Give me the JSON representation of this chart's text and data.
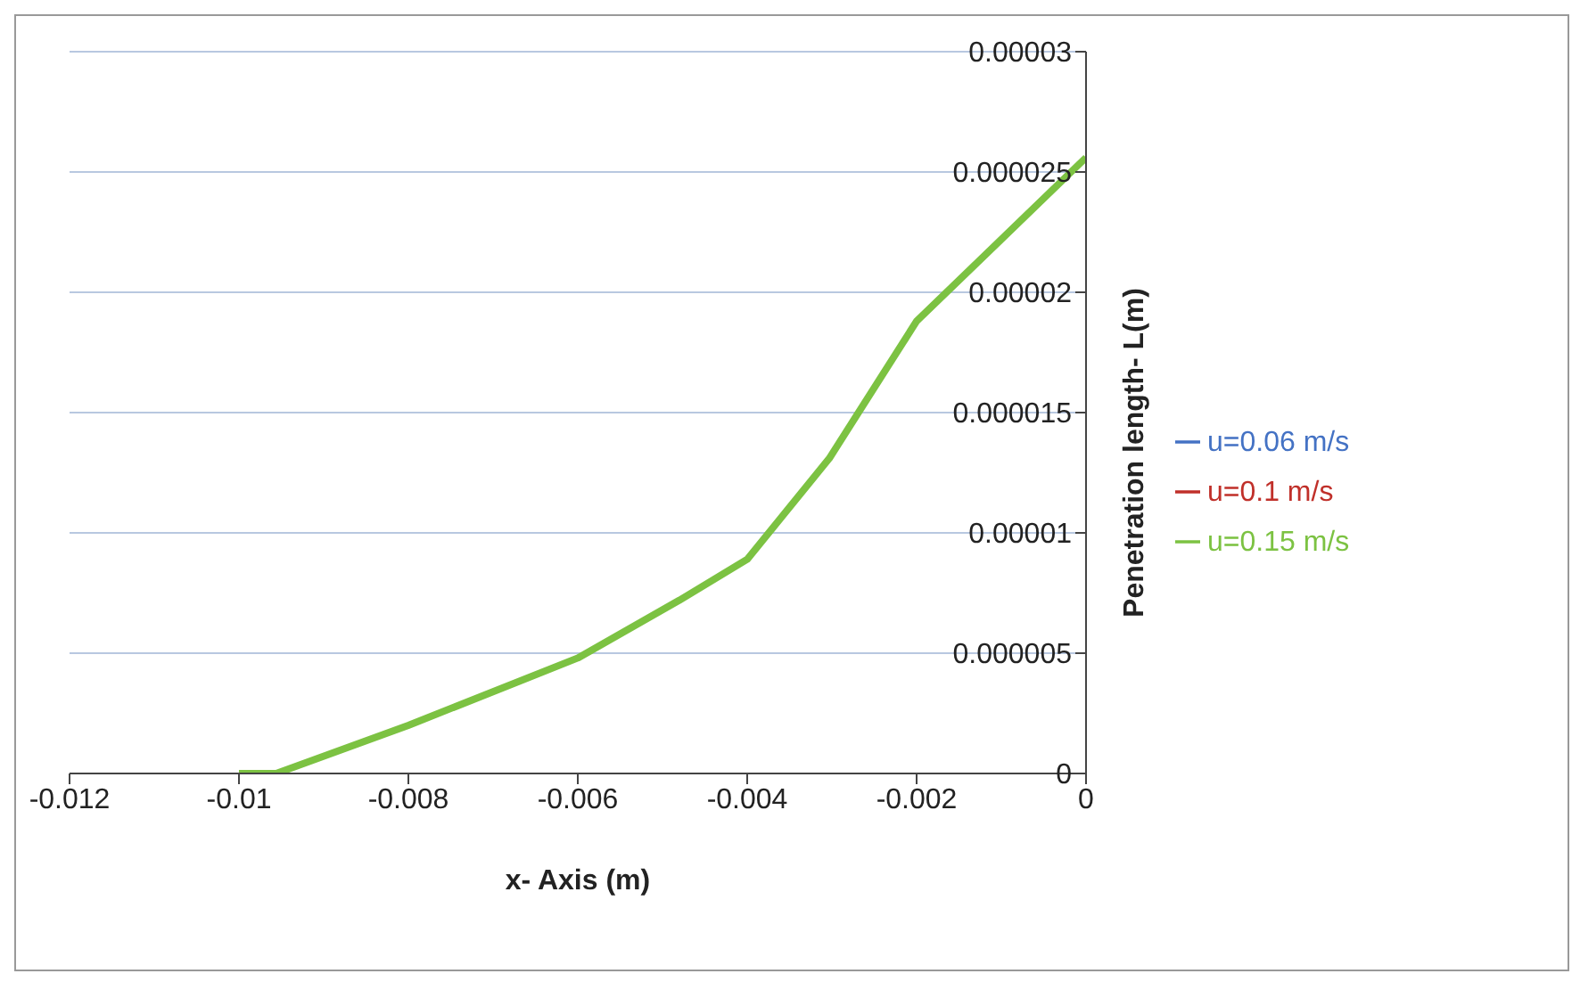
{
  "chart_data": {
    "type": "line",
    "xlabel": "x- Axis (m)",
    "ylabel": "Penetration length- L(m)",
    "x": [
      -0.01,
      -0.00956,
      -0.008,
      -0.006,
      -0.0048,
      -0.004,
      -0.00303,
      -0.002,
      -0.001,
      0
    ],
    "series": [
      {
        "name": "u=0.06 m/s",
        "color": "#4472c4",
        "values": [
          null,
          null,
          null,
          null,
          null,
          null,
          null,
          null,
          null,
          null
        ]
      },
      {
        "name": "u=0.1 m/s",
        "color": "#c0302a",
        "values": [
          null,
          null,
          null,
          null,
          null,
          null,
          null,
          null,
          null,
          null
        ]
      },
      {
        "name": "u=0.15 m/s",
        "color": "#7cc242",
        "values": [
          0,
          0,
          2e-06,
          4.8e-06,
          7.2e-06,
          8.9e-06,
          1.31e-05,
          1.88e-05,
          2.22e-05,
          2.56e-05
        ]
      }
    ],
    "xlim": [
      -0.012,
      0
    ],
    "xticks": [
      -0.012,
      -0.01,
      -0.008,
      -0.006,
      -0.004,
      -0.002,
      0
    ],
    "ylim": [
      0,
      3e-05
    ],
    "yticks": [
      0,
      {
        "value": 5e-06,
        "label": "0.000005"
      },
      {
        "value": 1e-05,
        "label": "0.00001"
      },
      {
        "value": 1.5e-05,
        "label": "0.000015"
      },
      {
        "value": 2e-05,
        "label": "0.00002"
      },
      {
        "value": 2.5e-05,
        "label": "0.000025"
      },
      {
        "value": 3e-05,
        "label": "0.00003"
      }
    ],
    "grid": "y",
    "legend": "right",
    "marker": "none",
    "line_style": "solid"
  }
}
